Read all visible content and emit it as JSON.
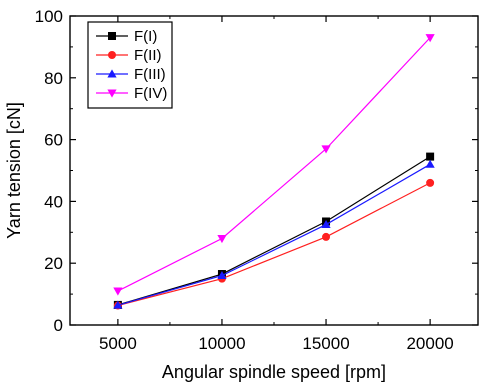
{
  "chart_data": {
    "type": "line",
    "title": "",
    "xlabel": "Angular spindle speed [rpm]",
    "ylabel": "Yarn tension [cN]",
    "x": [
      5000,
      10000,
      15000,
      20000
    ],
    "xticks": [
      "5000",
      "10000",
      "15000",
      "20000"
    ],
    "yticks": [
      "0",
      "20",
      "40",
      "60",
      "80",
      "100"
    ],
    "xlim": [
      2700,
      22300
    ],
    "ylim": [
      0,
      100
    ],
    "grid": false,
    "legend_position": "top-left",
    "series": [
      {
        "name": "F(I)",
        "color": "#000000",
        "marker": "square",
        "values": [
          6.5,
          16.5,
          33.5,
          54.5
        ]
      },
      {
        "name": "F(II)",
        "color": "#ff2020",
        "marker": "circle",
        "values": [
          6.3,
          15.0,
          28.5,
          46.0
        ]
      },
      {
        "name": "F(III)",
        "color": "#1a1aff",
        "marker": "triangle-up",
        "values": [
          6.4,
          16.0,
          32.5,
          52.0
        ]
      },
      {
        "name": "F(IV)",
        "color": "#ff00ff",
        "marker": "triangle-down",
        "values": [
          11.0,
          28.0,
          57.0,
          93.0
        ]
      }
    ]
  }
}
